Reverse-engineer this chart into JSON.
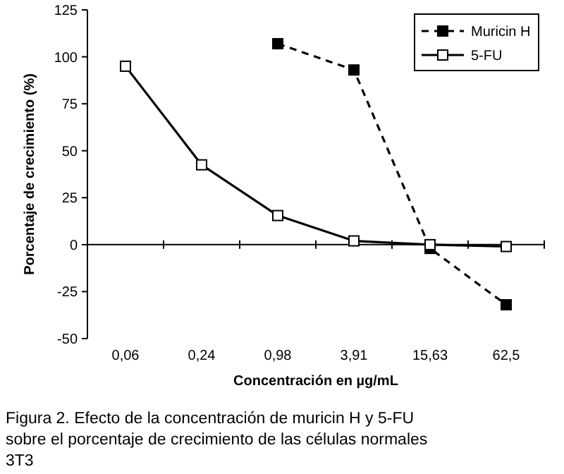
{
  "chart_data": {
    "type": "line",
    "xlabel": "Concentración en µg/mL",
    "ylabel": "Porcentaje de crecimiento (%)",
    "categories": [
      "0,06",
      "0,24",
      "0,98",
      "3,91",
      "15,63",
      "62,5"
    ],
    "series": [
      {
        "name": "Muricin H",
        "color": "#000000",
        "values": [
          null,
          null,
          107,
          93,
          -2,
          -32
        ],
        "marker": "square",
        "line_style": "dashed"
      },
      {
        "name": "5-FU",
        "color": "#000000",
        "values": [
          95,
          42.5,
          15.5,
          2,
          0,
          -1
        ],
        "marker": "square",
        "line_style": "solid"
      }
    ],
    "ylim": [
      -50,
      125
    ],
    "yticks": [
      -50,
      -25,
      0,
      25,
      50,
      75,
      100,
      125
    ],
    "legend": "top right",
    "annotations": [
      "Figura 2. Efecto de la concentración de muricin H y 5-FU sobre el porcentaje de crecimiento de las células normales 3T3"
    ]
  }
}
